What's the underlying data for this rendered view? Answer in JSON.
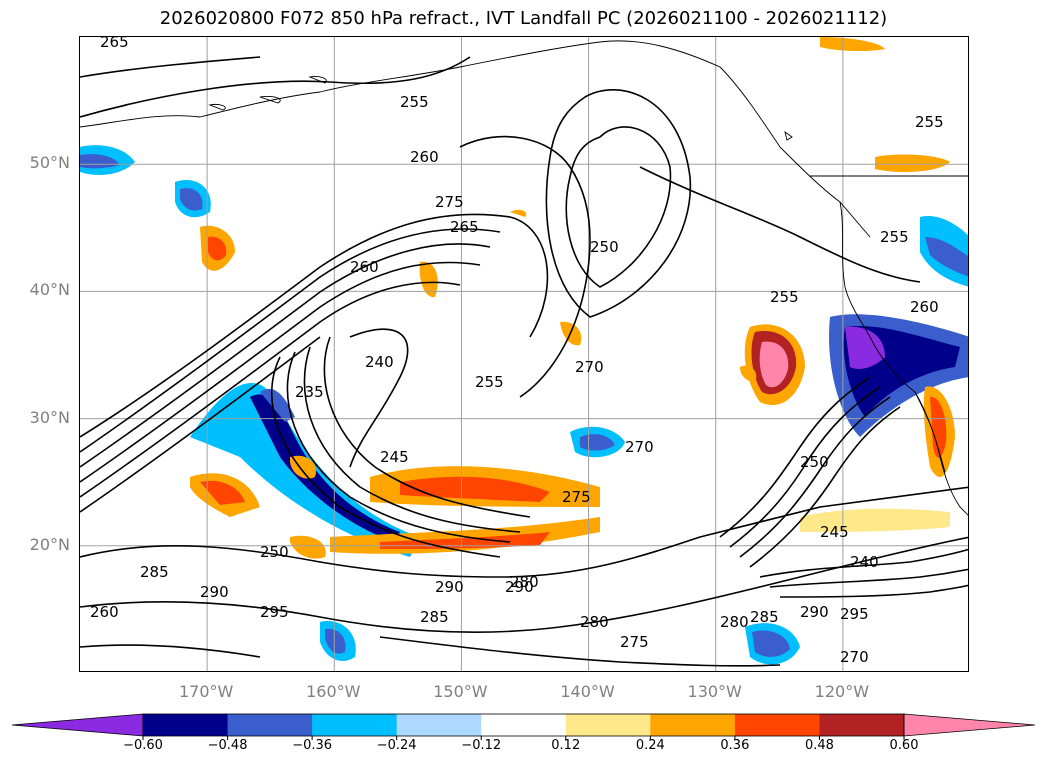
{
  "title": "2026020800 F072 850 hPa refract., IVT Landfall PC (2026021100 - 2026021112)",
  "map": {
    "projection": "equirectangular",
    "lon_range": [
      -180,
      -110
    ],
    "lat_range": [
      10,
      60
    ],
    "graticule": true,
    "coastlines": true,
    "lat_labels": [
      {
        "lat": 50,
        "text": "50°N"
      },
      {
        "lat": 40,
        "text": "40°N"
      },
      {
        "lat": 30,
        "text": "30°N"
      },
      {
        "lat": 20,
        "text": "20°N"
      }
    ],
    "lon_labels": [
      {
        "lon": -170,
        "text": "170°W"
      },
      {
        "lon": -160,
        "text": "160°W"
      },
      {
        "lon": -150,
        "text": "150°W"
      },
      {
        "lon": -140,
        "text": "140°W"
      },
      {
        "lon": -130,
        "text": "130°W"
      },
      {
        "lon": -120,
        "text": "120°W"
      }
    ],
    "contour_labels": [
      "265",
      "255",
      "260",
      "275",
      "265",
      "260",
      "250",
      "240",
      "235",
      "245",
      "255",
      "270",
      "270",
      "275",
      "250",
      "255",
      "245",
      "240",
      "250",
      "285",
      "290",
      "295",
      "280",
      "285",
      "290",
      "295",
      "270",
      "275",
      "280",
      "290",
      "285",
      "290",
      "260",
      "255",
      "260",
      "255",
      "280"
    ]
  },
  "colorbar": {
    "bounds": [
      -0.6,
      -0.48,
      -0.36,
      -0.24,
      -0.12,
      0.12,
      0.24,
      0.36,
      0.48,
      0.6
    ],
    "tick_labels": [
      "−0.60",
      "−0.48",
      "−0.36",
      "−0.24",
      "−0.12",
      "0.12",
      "0.24",
      "0.36",
      "0.48",
      "0.60"
    ],
    "colors": [
      "#8a2be2",
      "#00008b",
      "#3a5fcd",
      "#00bfff",
      "#add8ff",
      "#ffffff",
      "#ffe88a",
      "#ffa500",
      "#ff4500",
      "#b22222",
      "#ff85aa"
    ],
    "extend": "both"
  }
}
